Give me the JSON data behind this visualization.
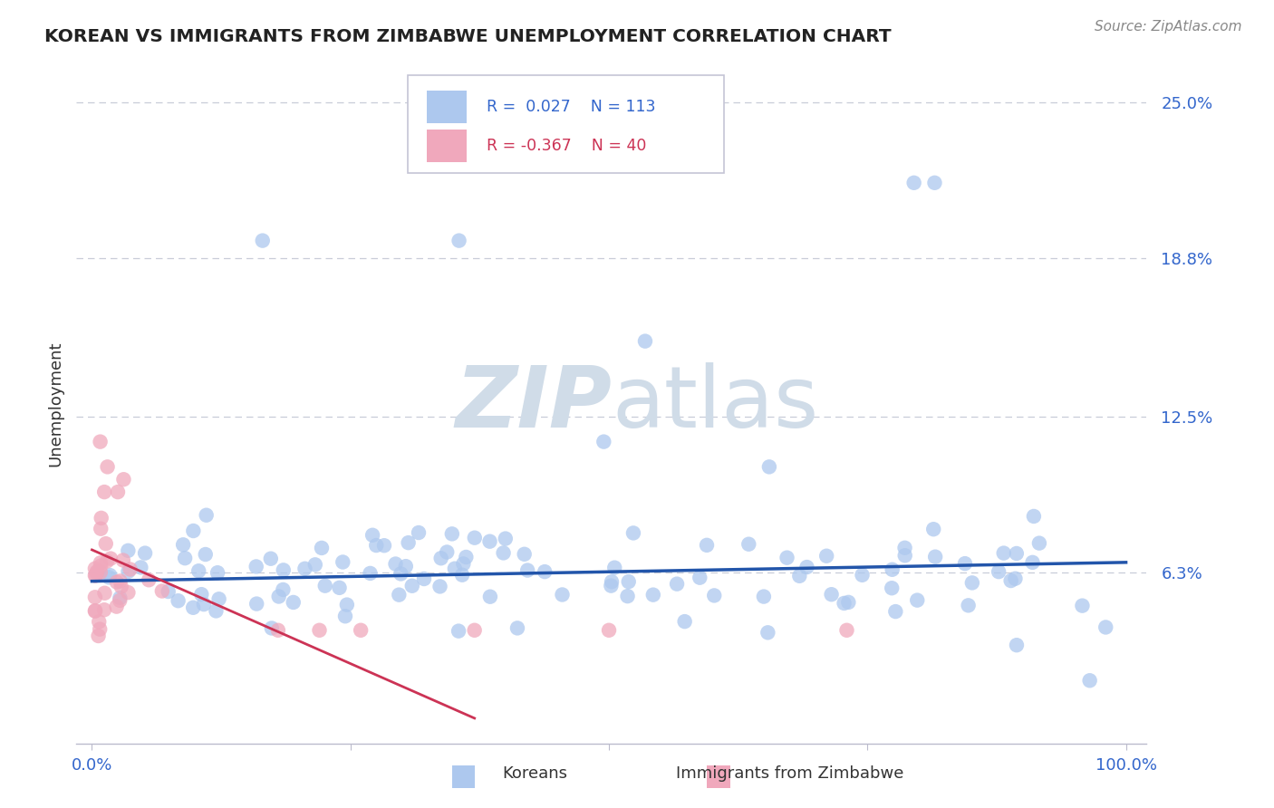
{
  "title": "KOREAN VS IMMIGRANTS FROM ZIMBABWE UNEMPLOYMENT CORRELATION CHART",
  "source": "Source: ZipAtlas.com",
  "ylabel": "Unemployment",
  "korean_R": 0.027,
  "korean_N": 113,
  "zimbabwe_R": -0.367,
  "zimbabwe_N": 40,
  "legend_label_korean": "Koreans",
  "legend_label_zimbabwe": "Immigrants from Zimbabwe",
  "korean_color": "#adc8ee",
  "zimbabwe_color": "#f0a8bc",
  "korean_line_color": "#2255aa",
  "zimbabwe_line_color": "#cc3355",
  "bg_color": "#ffffff",
  "grid_color": "#c8ccd8",
  "title_color": "#222222",
  "axis_label_color": "#3366cc",
  "source_color": "#888888",
  "watermark_color": "#d0dce8",
  "ytick_vals": [
    0.063,
    0.125,
    0.188,
    0.25
  ],
  "ytick_labels": [
    "6.3%",
    "12.5%",
    "18.8%",
    "25.0%"
  ],
  "ymin": -0.005,
  "ymax": 0.265,
  "xmin": -0.015,
  "xmax": 1.02,
  "korean_trend": [
    0.0,
    0.0595,
    1.0,
    0.067
  ],
  "zimbabwe_trend": [
    0.0,
    0.072,
    0.37,
    0.005
  ]
}
